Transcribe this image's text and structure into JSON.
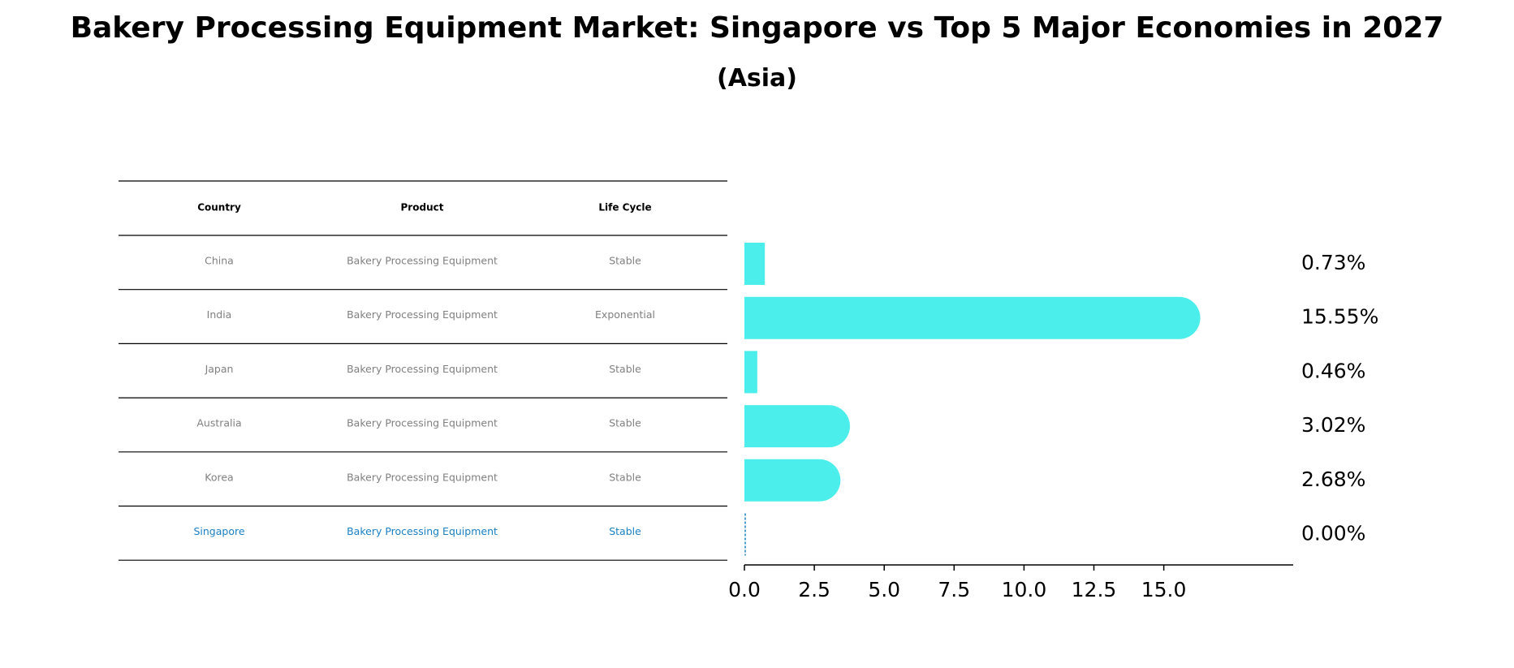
{
  "header": {
    "title": "Bakery Processing Equipment Market: Singapore vs Top 5 Major Economies in 2027",
    "subtitle": "(Asia)"
  },
  "table": {
    "columns": [
      "Country",
      "Product",
      "Life Cycle"
    ],
    "rows": [
      [
        "China",
        "Bakery Processing Equipment",
        "Stable"
      ],
      [
        "India",
        "Bakery Processing Equipment",
        "Exponential"
      ],
      [
        "Japan",
        "Bakery Processing Equipment",
        "Stable"
      ],
      [
        "Australia",
        "Bakery Processing Equipment",
        "Stable"
      ],
      [
        "Korea",
        "Bakery Processing Equipment",
        "Stable"
      ],
      [
        "Singapore",
        "Bakery Processing Equipment",
        "Stable"
      ]
    ]
  },
  "colors": {
    "bar": "#4beeea",
    "highlight": "#1a80c4",
    "muted_text": "#808080",
    "text": "#000000"
  },
  "chart_data": {
    "type": "bar",
    "orientation": "horizontal",
    "categories": [
      "China",
      "India",
      "Japan",
      "Australia",
      "Korea",
      "Singapore"
    ],
    "values": [
      0.73,
      15.55,
      0.46,
      3.02,
      2.68,
      0.0
    ],
    "value_labels": [
      "0.73%",
      "15.55%",
      "0.46%",
      "3.02%",
      "2.68%",
      "0.00%"
    ],
    "xlim": [
      0,
      16.3
    ],
    "xticks": [
      0.0,
      2.5,
      5.0,
      7.5,
      10.0,
      12.5,
      15.0
    ],
    "xtick_labels": [
      "0.0",
      "2.5",
      "5.0",
      "7.5",
      "10.0",
      "12.5",
      "15.0"
    ],
    "highlight": "Singapore",
    "grid": false
  }
}
